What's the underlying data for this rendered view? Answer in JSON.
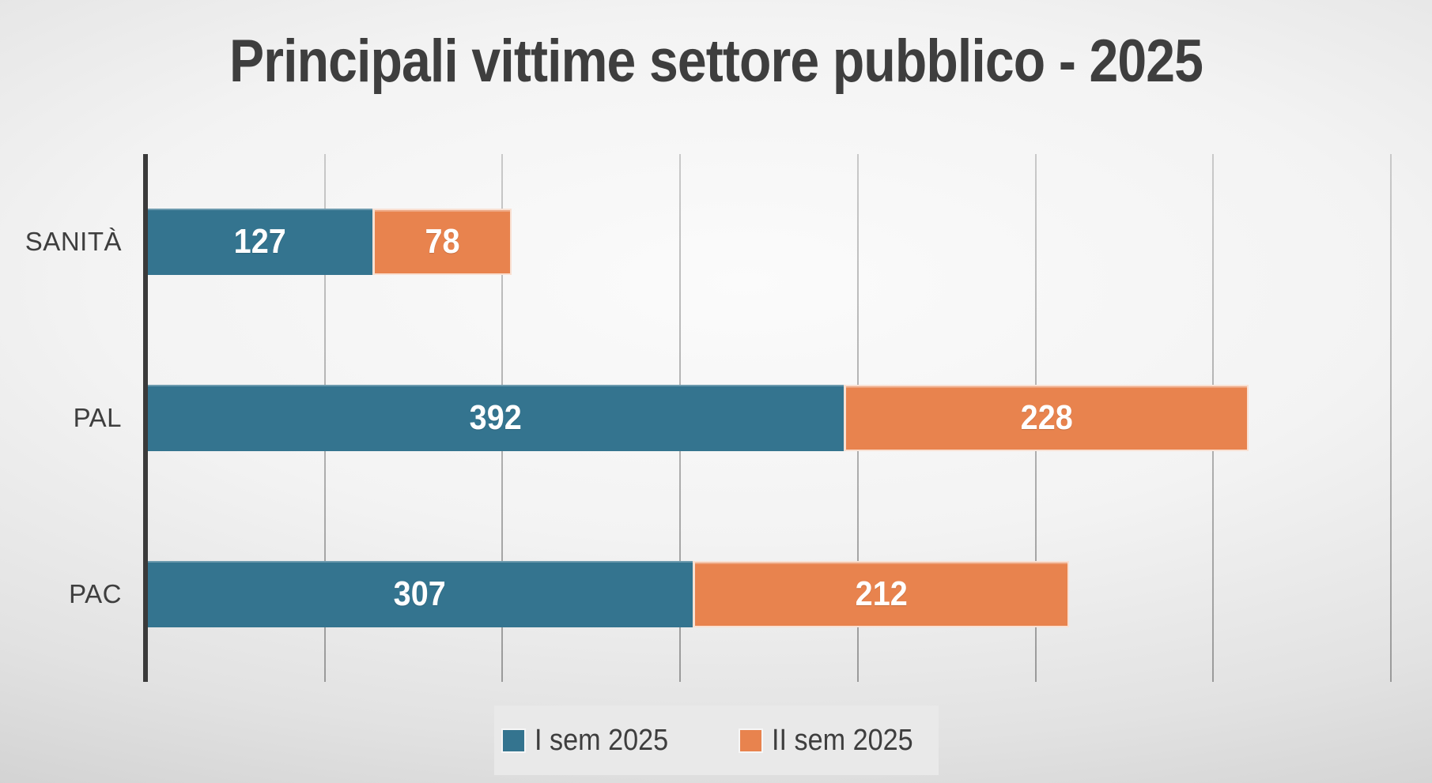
{
  "page": {
    "title": "Principali vittime settore pubblico - 2025"
  },
  "chart_data": {
    "type": "bar",
    "orientation": "horizontal",
    "stacked": true,
    "title": "Principali vittime settore pubblico - 2025",
    "categories": [
      "SANITÀ",
      "PAL",
      "PAC"
    ],
    "series": [
      {
        "name": "I sem 2025",
        "color": "#34748F",
        "values": [
          127,
          392,
          307
        ]
      },
      {
        "name": "II sem 2025",
        "color": "#E8834E",
        "values": [
          78,
          228,
          212
        ]
      }
    ],
    "xlabel": "",
    "ylabel": "",
    "xlim": [
      0,
      700
    ],
    "grid_interval": 100,
    "grid": true,
    "legend_position": "bottom",
    "data_labels": "inside-center",
    "data_label_color": "#FFFFFF"
  },
  "colors": {
    "background_center": "#FBFBFB",
    "background_edge": "#C3C3C3",
    "title_text": "#3E3E3E",
    "axis_line": "#3A3A3A",
    "gridline": "#A5A5A5",
    "category_label_text": "#3E3E3E",
    "legend_background": "#E9E9E9",
    "legend_text": "#3E3E3E"
  }
}
